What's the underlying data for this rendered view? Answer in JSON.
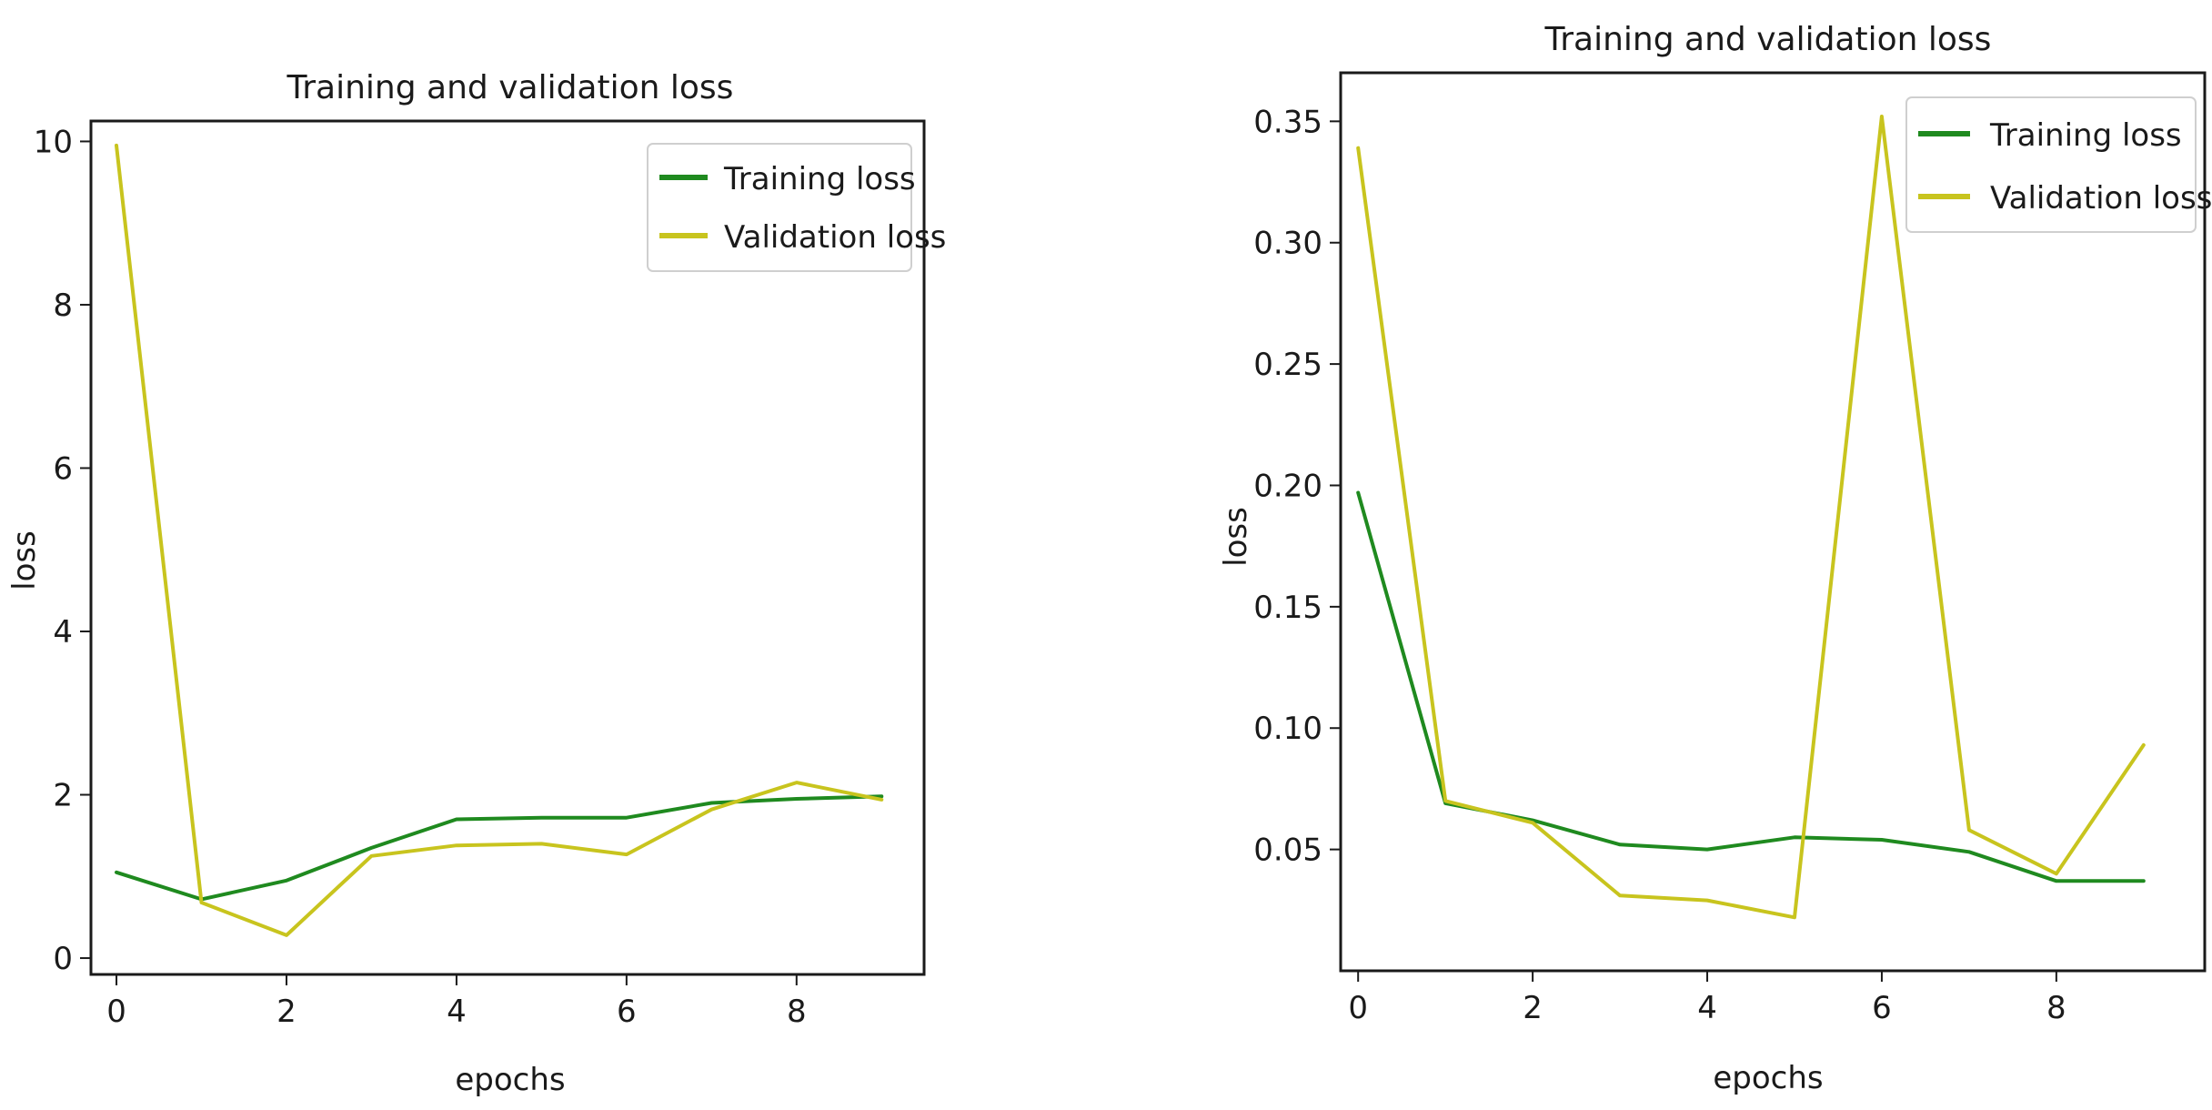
{
  "chart_data": [
    {
      "type": "line",
      "title": "Training and validation loss",
      "xlabel": "epochs",
      "ylabel": "loss",
      "x": [
        0,
        1,
        2,
        3,
        4,
        5,
        6,
        7,
        8,
        9
      ],
      "xlim": [
        -0.3,
        9.5
      ],
      "ylim": [
        -0.2,
        10.25
      ],
      "xticks": [
        0,
        2,
        4,
        6,
        8
      ],
      "xtick_labels": [
        "0",
        "2",
        "4",
        "6",
        "8"
      ],
      "yticks": [
        0,
        2,
        4,
        6,
        8,
        10
      ],
      "ytick_labels": [
        "0",
        "2",
        "4",
        "6",
        "8",
        "10"
      ],
      "grid": false,
      "legend_position": "top-right",
      "series": [
        {
          "name": "Training loss",
          "color": "#1f8a1f",
          "values": [
            1.05,
            0.72,
            0.95,
            1.35,
            1.7,
            1.72,
            1.72,
            1.9,
            1.95,
            1.98
          ]
        },
        {
          "name": "Validation loss",
          "color": "#c8c41e",
          "values": [
            9.95,
            0.68,
            0.28,
            1.25,
            1.38,
            1.4,
            1.27,
            1.82,
            2.15,
            1.94
          ]
        }
      ]
    },
    {
      "type": "line",
      "title": "Training and validation loss",
      "xlabel": "epochs",
      "ylabel": "loss",
      "x": [
        0,
        1,
        2,
        3,
        4,
        5,
        6,
        7,
        8,
        9
      ],
      "xlim": [
        -0.2,
        9.7
      ],
      "ylim": [
        0.0,
        0.37
      ],
      "xticks": [
        0,
        2,
        4,
        6,
        8
      ],
      "xtick_labels": [
        "0",
        "2",
        "4",
        "6",
        "8"
      ],
      "yticks": [
        0.05,
        0.1,
        0.15,
        0.2,
        0.25,
        0.3,
        0.35
      ],
      "ytick_labels": [
        "0.05",
        "0.10",
        "0.15",
        "0.20",
        "0.25",
        "0.30",
        "0.35"
      ],
      "grid": false,
      "legend_position": "top-right",
      "series": [
        {
          "name": "Training loss",
          "color": "#1f8a1f",
          "values": [
            0.197,
            0.069,
            0.062,
            0.052,
            0.05,
            0.055,
            0.054,
            0.049,
            0.037,
            0.037
          ]
        },
        {
          "name": "Validation loss",
          "color": "#c8c41e",
          "values": [
            0.339,
            0.07,
            0.061,
            0.031,
            0.029,
            0.022,
            0.352,
            0.058,
            0.04,
            0.093
          ]
        }
      ]
    }
  ]
}
